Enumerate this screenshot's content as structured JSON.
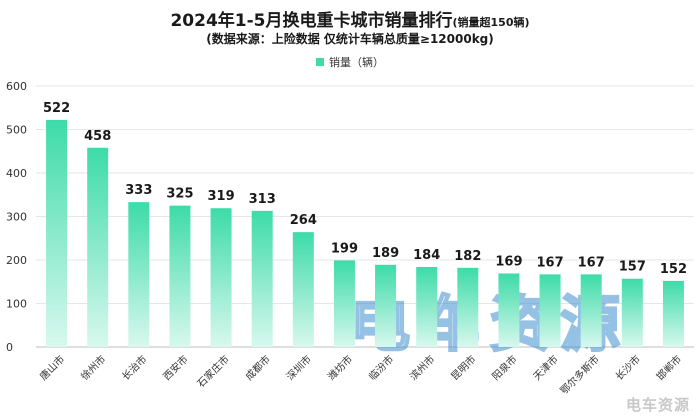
{
  "chart_data": {
    "type": "bar",
    "title": "2024年1-5月换电重卡城市销量排行",
    "title_note": "(销量超150辆)",
    "subtitle": "(数据来源：上险数据  仅统计车辆总质量≥12000kg)",
    "legend": [
      "销量（辆）"
    ],
    "categories": [
      "唐山市",
      "徐州市",
      "长治市",
      "西安市",
      "石家庄市",
      "成都市",
      "深圳市",
      "潍坊市",
      "临汾市",
      "滨州市",
      "昆明市",
      "阳泉市",
      "天津市",
      "鄂尔多斯市",
      "长沙市",
      "邯郸市"
    ],
    "series": [
      {
        "name": "销量（辆）",
        "values": [
          522,
          458,
          333,
          325,
          319,
          313,
          264,
          199,
          189,
          184,
          182,
          169,
          167,
          167,
          157,
          152
        ]
      }
    ],
    "ylim": [
      0,
      600
    ],
    "yticks": [
      0,
      100,
      200,
      300,
      400,
      500,
      600
    ],
    "xlabel": "",
    "ylabel": "",
    "grid": true
  },
  "colors": {
    "bar_top": "#3ddba8",
    "bar_bottom": "#d8f8ee",
    "grid": "#e6e6e6",
    "watermark_blue": "#3f8fd1",
    "watermark_gray": "#c8c8c8"
  },
  "watermark": {
    "center_text": "电车资源",
    "corner_text": "电车资源"
  }
}
